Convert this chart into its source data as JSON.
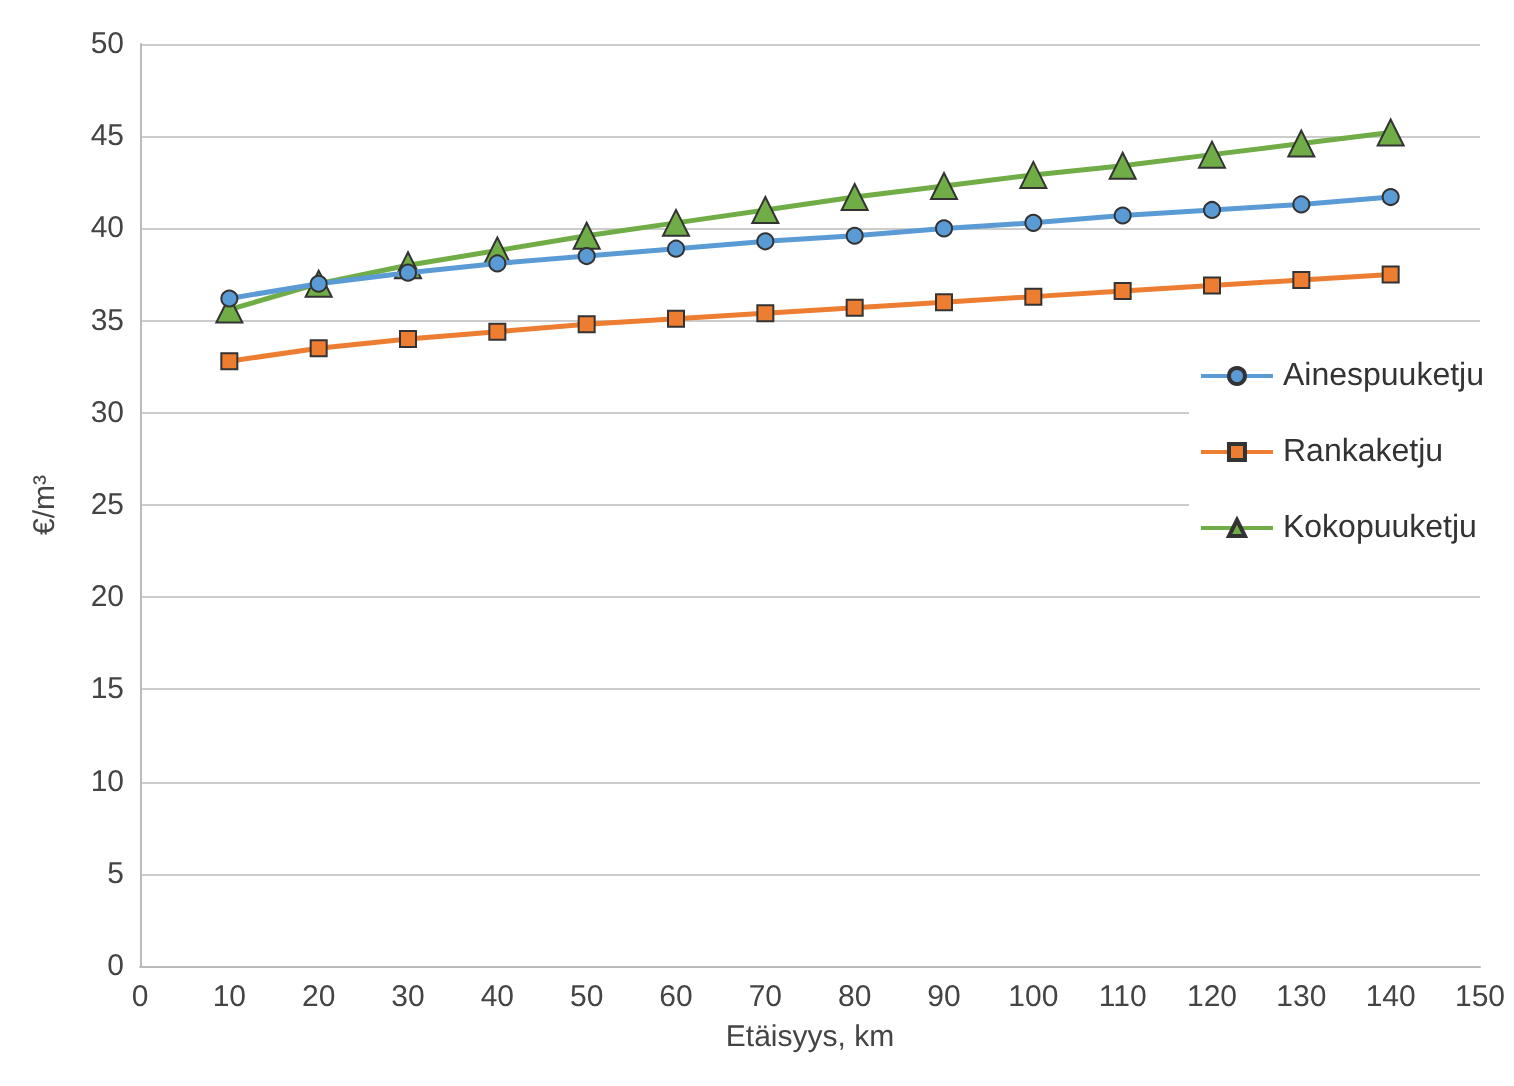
{
  "chart_data": {
    "type": "line",
    "xlabel": "Etäisyys, km",
    "ylabel": "€/m³",
    "x": [
      10,
      20,
      30,
      40,
      50,
      60,
      70,
      80,
      90,
      100,
      110,
      120,
      130,
      140
    ],
    "series": [
      {
        "name": "Ainespuuketju",
        "color": "#5b9bd5",
        "marker": "circle",
        "values": [
          36.2,
          37.0,
          37.6,
          38.1,
          38.5,
          38.9,
          39.3,
          39.6,
          40.0,
          40.3,
          40.7,
          41.0,
          41.3,
          41.7
        ]
      },
      {
        "name": "Rankaketju",
        "color": "#ed7d31",
        "marker": "square",
        "values": [
          32.8,
          33.5,
          34.0,
          34.4,
          34.8,
          35.1,
          35.4,
          35.7,
          36.0,
          36.3,
          36.6,
          36.9,
          37.2,
          37.5
        ]
      },
      {
        "name": "Kokopuuketju",
        "color": "#70ad47",
        "marker": "triangle",
        "values": [
          35.6,
          37.0,
          38.0,
          38.8,
          39.6,
          40.3,
          41.0,
          41.7,
          42.3,
          42.9,
          43.4,
          44.0,
          44.6,
          45.2
        ]
      }
    ],
    "xlim": [
      0,
      150
    ],
    "xticks": [
      0,
      10,
      20,
      30,
      40,
      50,
      60,
      70,
      80,
      90,
      100,
      110,
      120,
      130,
      140,
      150
    ],
    "ylim": [
      0,
      50
    ],
    "yticks": [
      0,
      5,
      10,
      15,
      20,
      25,
      30,
      35,
      40,
      45,
      50
    ],
    "grid": "y",
    "legend": "right"
  }
}
